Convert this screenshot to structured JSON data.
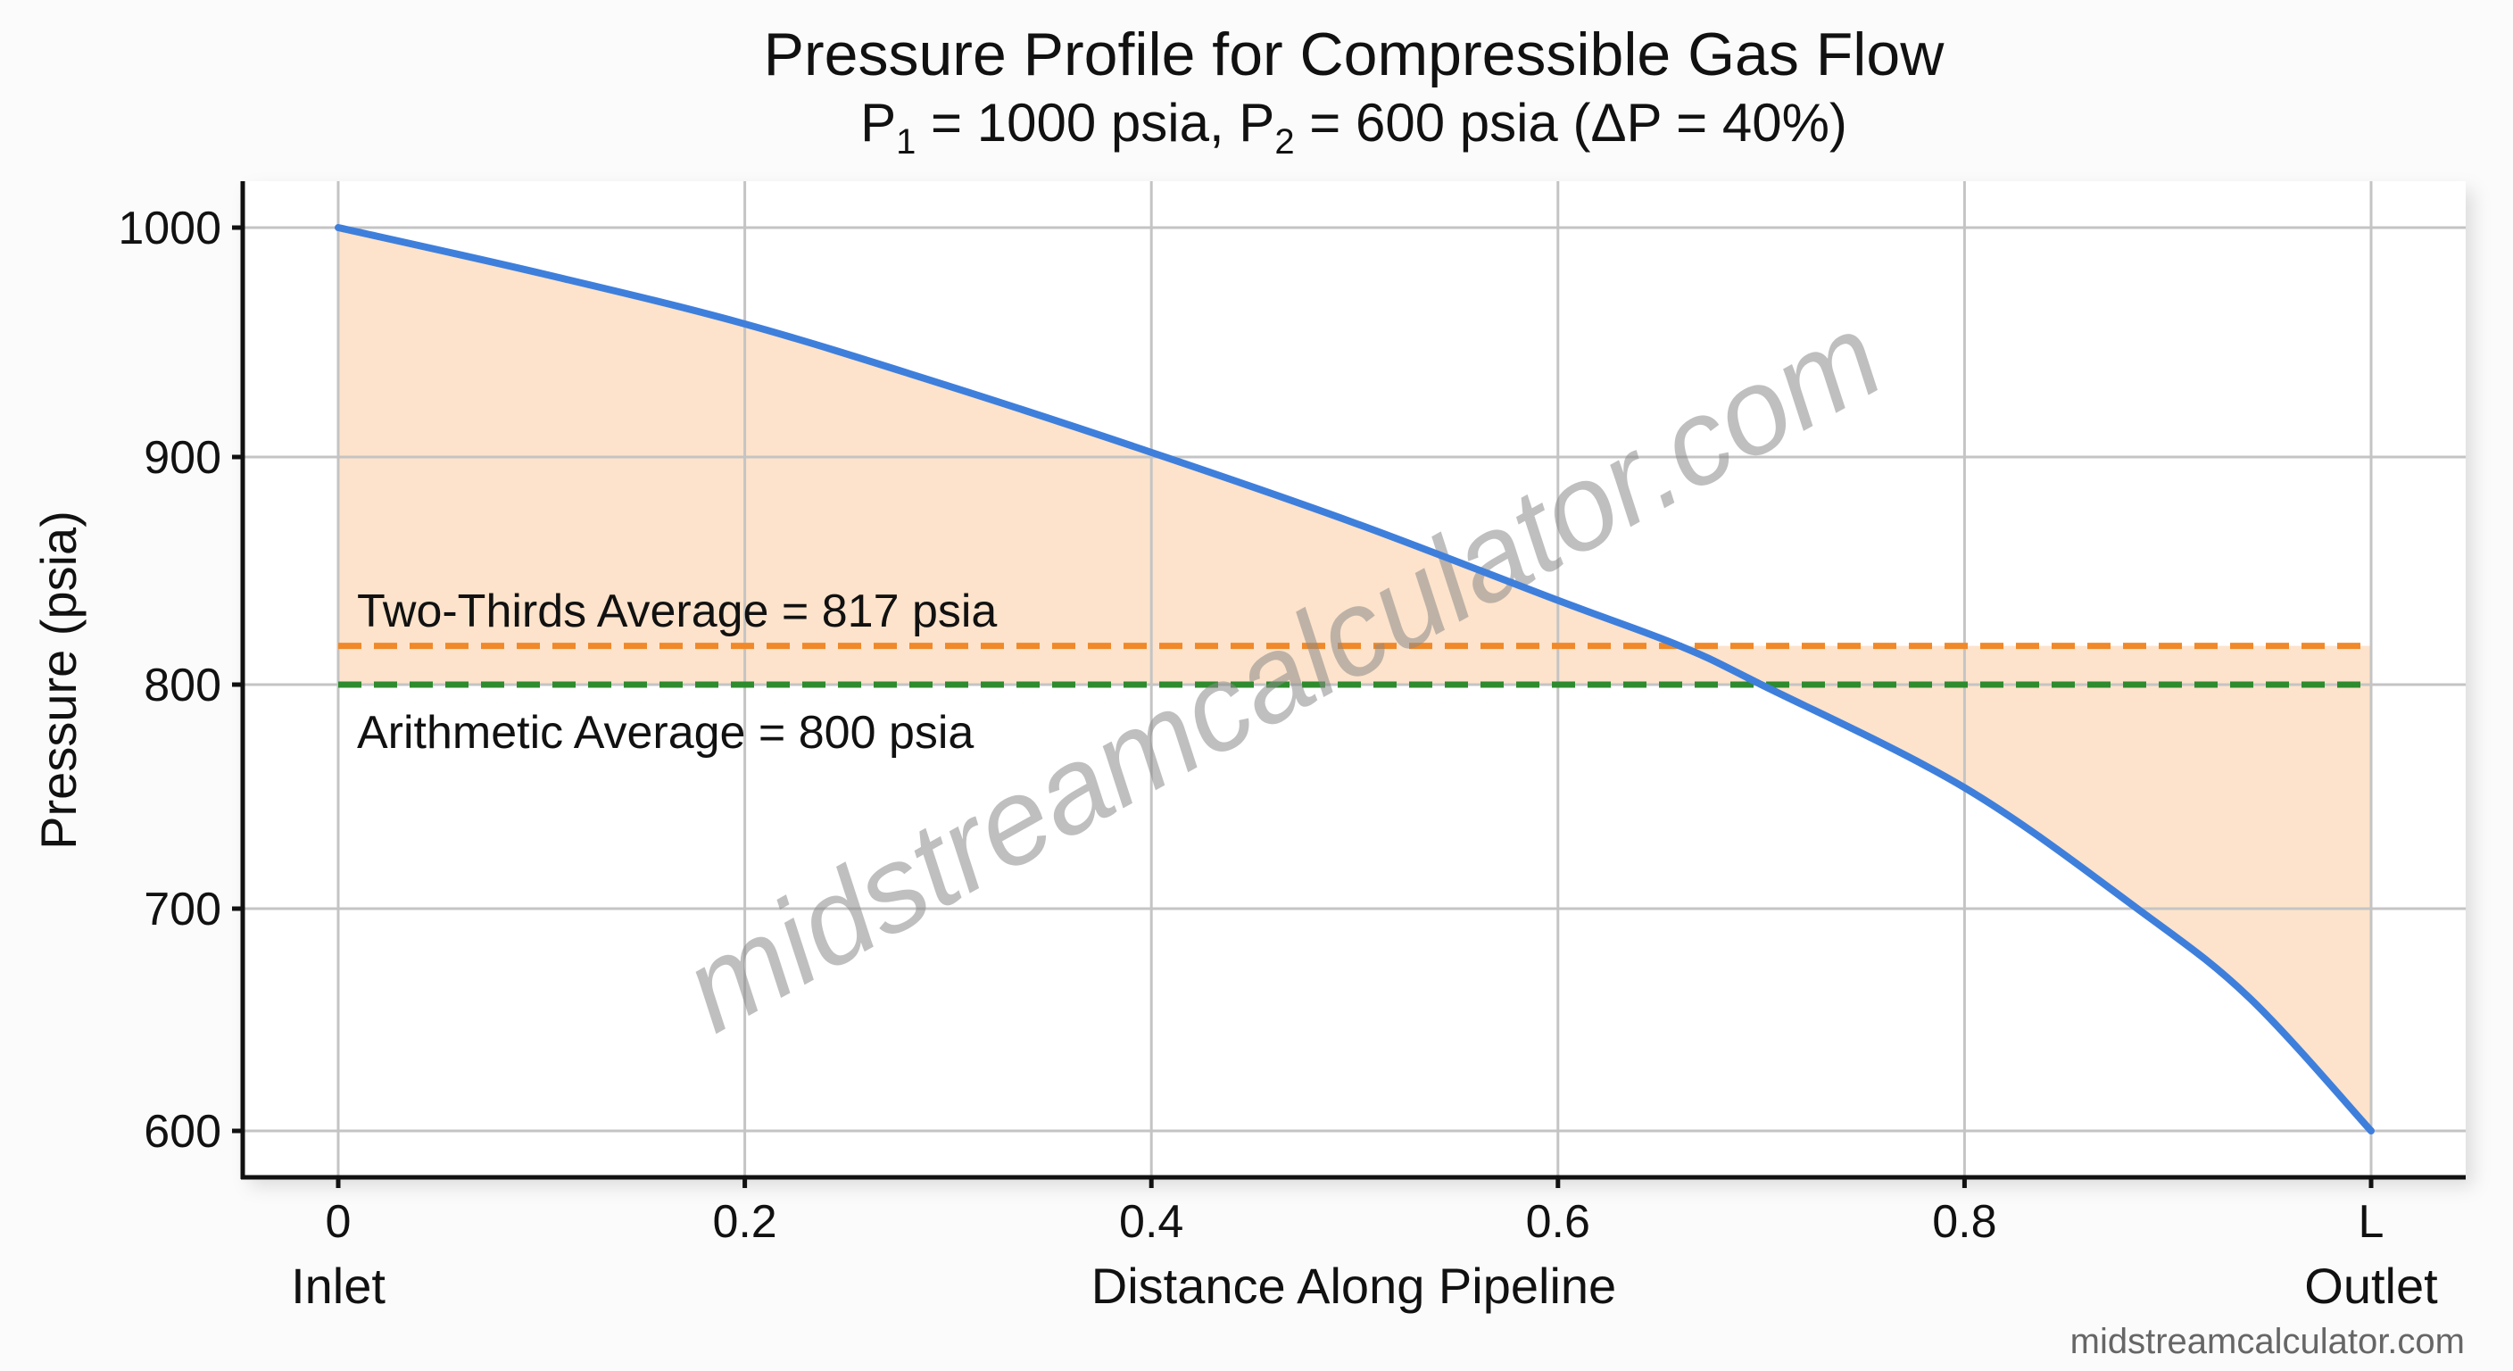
{
  "chart_data": {
    "type": "line",
    "title": "Pressure Profile for Compressible Gas Flow",
    "subtitle": "P1 = 1000 psia, P2 = 600 psia (ΔP = 40%)",
    "subtitle_parts": {
      "p1_label": "P",
      "p1_sub": "1",
      "p1_value": " = 1000 psia, ",
      "p2_label": "P",
      "p2_sub": "2",
      "p2_value": " = 600 psia (ΔP = 40%)"
    },
    "xlabel": "Distance Along Pipeline",
    "ylabel": "Pressure (psia)",
    "xlim": [
      0,
      1
    ],
    "ylim": [
      600,
      1000
    ],
    "x_ticks": [
      {
        "value": 0,
        "label": "0",
        "sublabel": "Inlet"
      },
      {
        "value": 0.2,
        "label": "0.2"
      },
      {
        "value": 0.4,
        "label": "0.4"
      },
      {
        "value": 0.6,
        "label": "0.6"
      },
      {
        "value": 0.8,
        "label": "0.8"
      },
      {
        "value": 1.0,
        "label": "L",
        "sublabel": "Outlet"
      }
    ],
    "y_ticks": [
      {
        "value": 1000,
        "label": "1000"
      },
      {
        "value": 900,
        "label": "900"
      },
      {
        "value": 800,
        "label": "800"
      },
      {
        "value": 700,
        "label": "700"
      },
      {
        "value": 600,
        "label": "600"
      }
    ],
    "grid": true,
    "series": [
      {
        "name": "Pressure profile",
        "color": "#3f7fdc",
        "x": [
          0,
          0.1,
          0.2,
          0.3,
          0.4,
          0.5,
          0.6,
          0.66,
          0.7,
          0.8,
          0.885,
          0.94,
          1.0
        ],
        "y": [
          1000,
          980,
          958,
          931,
          902,
          871,
          837,
          817,
          800,
          754,
          700,
          660,
          600
        ]
      }
    ],
    "reference_lines": [
      {
        "name": "Two-Thirds Average",
        "value": 817,
        "label": "Two-Thirds Average = 817 psia",
        "color": "#f0892a",
        "style": "dashed"
      },
      {
        "name": "Arithmetic Average",
        "value": 800,
        "label": "Arithmetic Average = 800 psia",
        "color": "#2e8b2e",
        "style": "dashed"
      }
    ],
    "fill": {
      "color": "#fde3cb",
      "description": "shaded area between profile curve and average lines"
    },
    "watermark": "midstreamcalculator.com",
    "footer": "midstreamcalculator.com"
  }
}
